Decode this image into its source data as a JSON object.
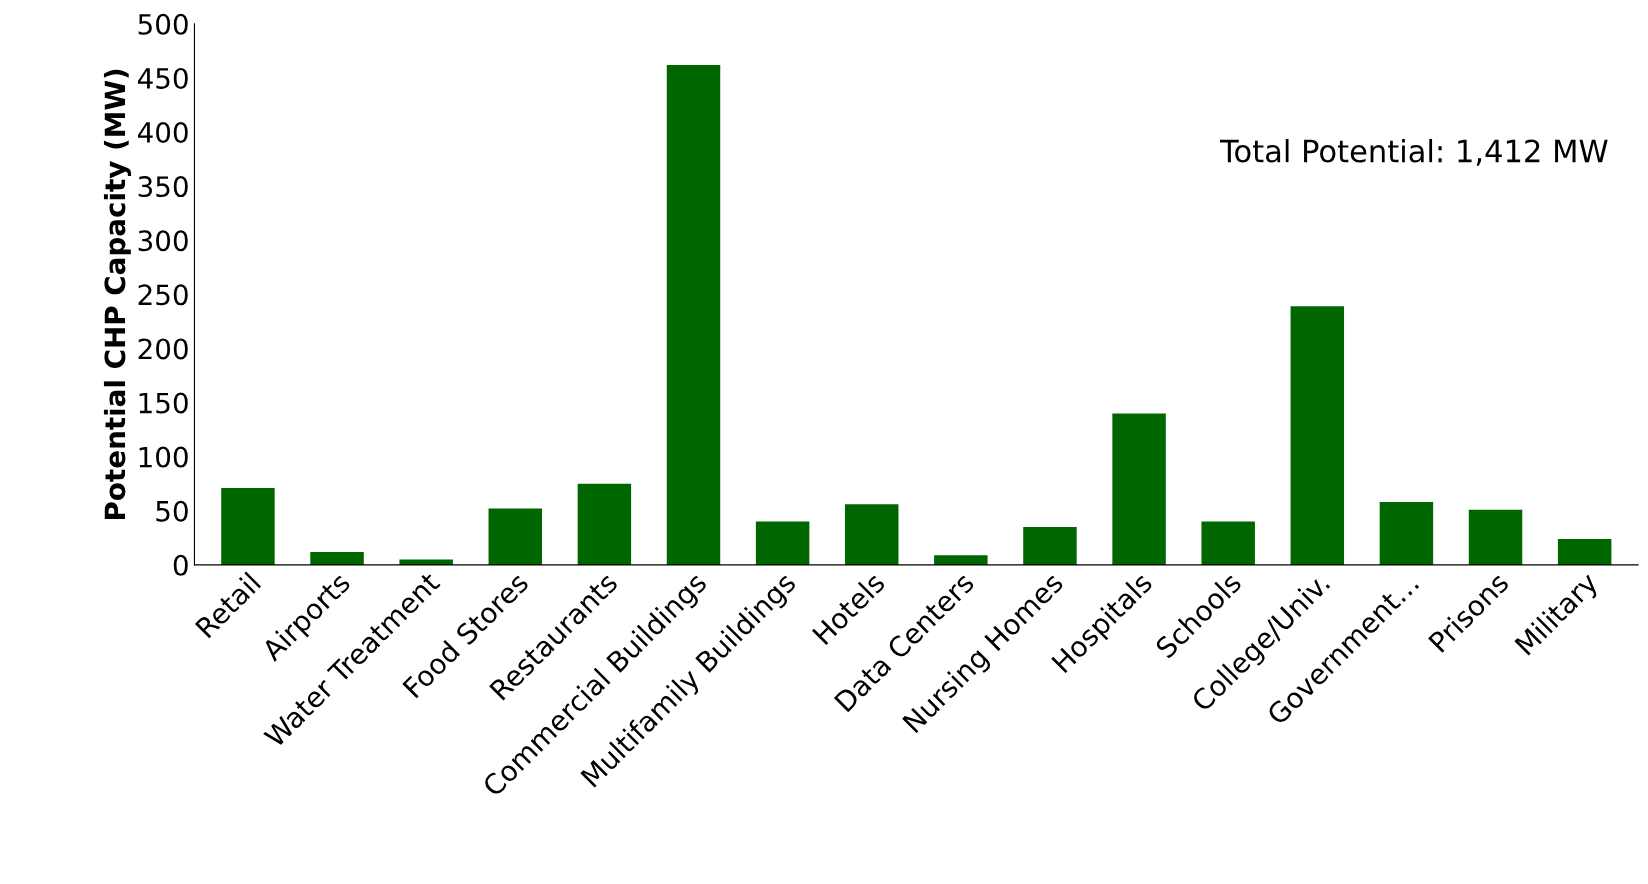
{
  "chart_data": {
    "type": "bar",
    "ylabel": "Potential CHP Capacity (MW)",
    "categories": [
      "Retail",
      "Airports",
      "Water Treatment",
      "Food Stores",
      "Restaurants",
      "Commercial Buildings",
      "Multifamily Buildings",
      "Hotels",
      "Data Centers",
      "Nursing Homes",
      "Hospitals",
      "Schools",
      "College/Univ.",
      "Government…",
      "Prisons",
      "Military"
    ],
    "values": [
      71,
      12,
      5,
      52,
      75,
      462,
      40,
      56,
      9,
      35,
      140,
      40,
      239,
      58,
      51,
      24
    ],
    "color": "#006600",
    "ylim": [
      0,
      500
    ],
    "yticks": [
      0,
      50,
      100,
      150,
      200,
      250,
      300,
      350,
      400,
      450,
      500
    ],
    "annotations": [
      "Total Potential: 1,412 MW"
    ]
  }
}
